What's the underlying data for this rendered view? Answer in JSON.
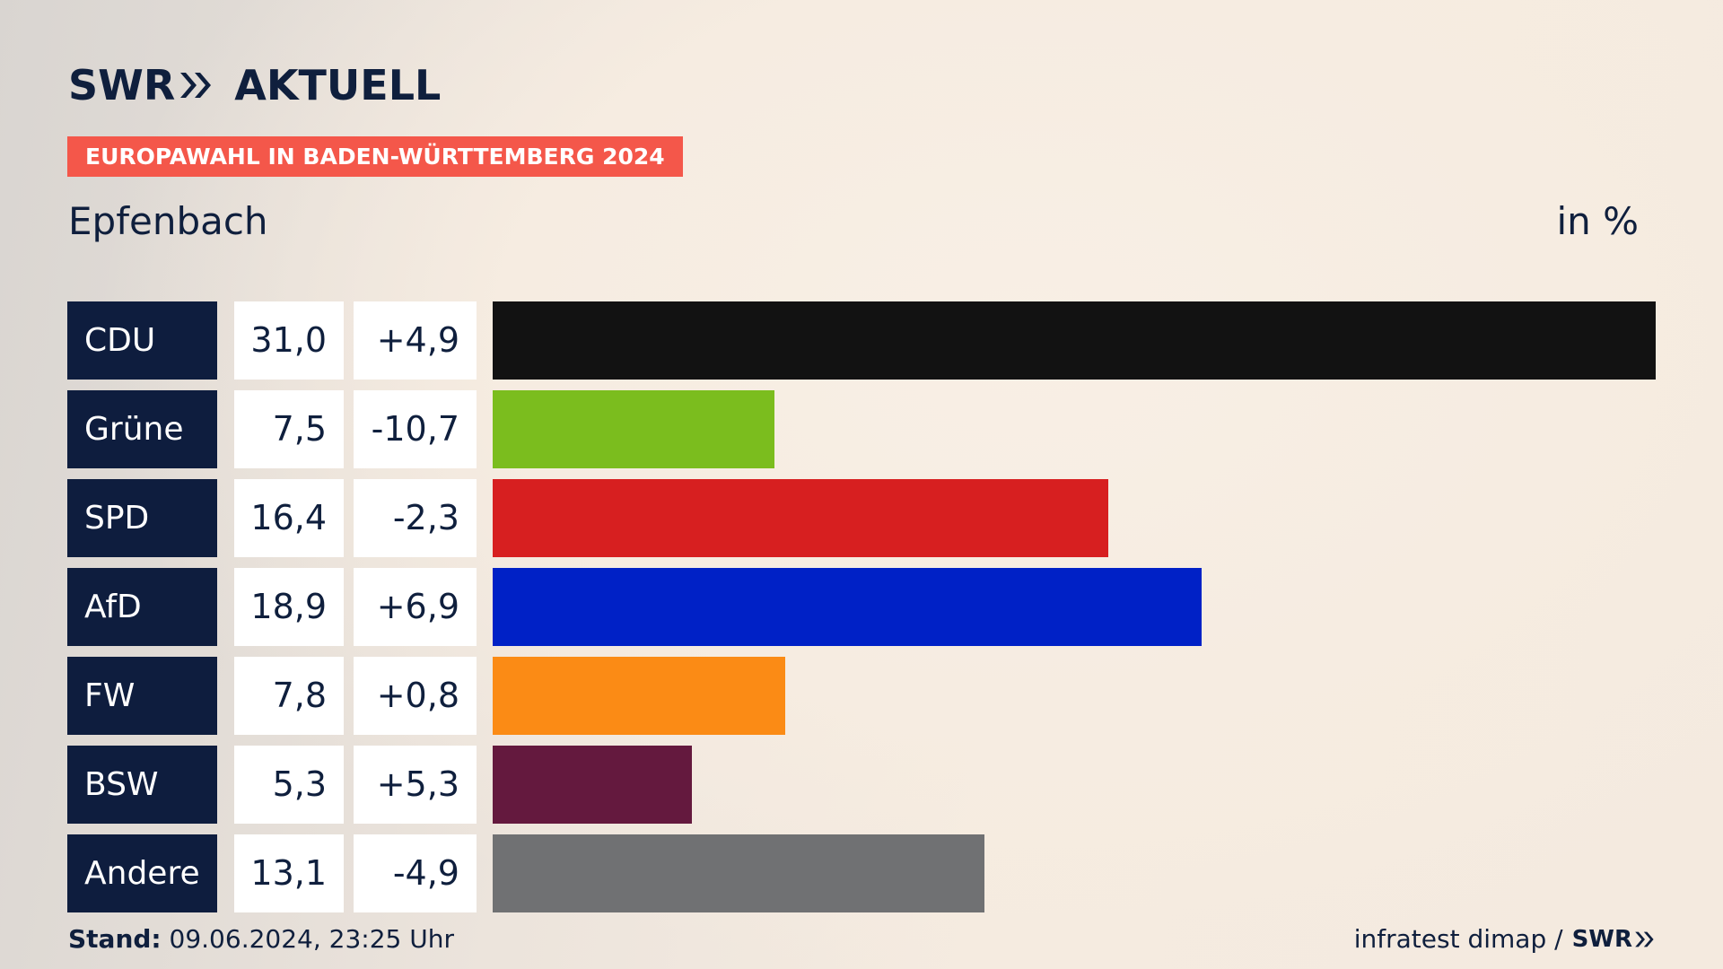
{
  "header": {
    "brand": "SWR",
    "product": "AKTUELL",
    "banner": "EUROPAWAHL IN BADEN-WÜRTTEMBERG 2024",
    "place": "Epfenbach",
    "unit": "in %"
  },
  "footer": {
    "stand_label": "Stand:",
    "stand_value": "09.06.2024, 23:25 Uhr",
    "source": "infratest dimap /",
    "source_brand": "SWR"
  },
  "colors": {
    "CDU": "#121212",
    "Grüne": "#7bbd1e",
    "SPD": "#d71f20",
    "AfD": "#0021c6",
    "FW": "#fb8b15",
    "BSW": "#64193e",
    "Andere": "#707173"
  },
  "chart_data": {
    "type": "bar",
    "orientation": "horizontal",
    "categories": [
      "CDU",
      "Grüne",
      "SPD",
      "AfD",
      "FW",
      "BSW",
      "Andere"
    ],
    "values": [
      31.0,
      7.5,
      16.4,
      18.9,
      7.8,
      5.3,
      13.1
    ],
    "value_labels": [
      "31,0",
      "7,5",
      "16,4",
      "18,9",
      "7,8",
      "5,3",
      "13,1"
    ],
    "change_labels": [
      "+4,9",
      "-10,7",
      "-2,3",
      "+6,9",
      "+0,8",
      "+5,3",
      "-4,9"
    ],
    "changes": [
      4.9,
      -10.7,
      -2.3,
      6.9,
      0.8,
      5.3,
      -4.9
    ],
    "xlim": [
      0,
      31.0
    ],
    "grid": false,
    "legend": "none"
  }
}
